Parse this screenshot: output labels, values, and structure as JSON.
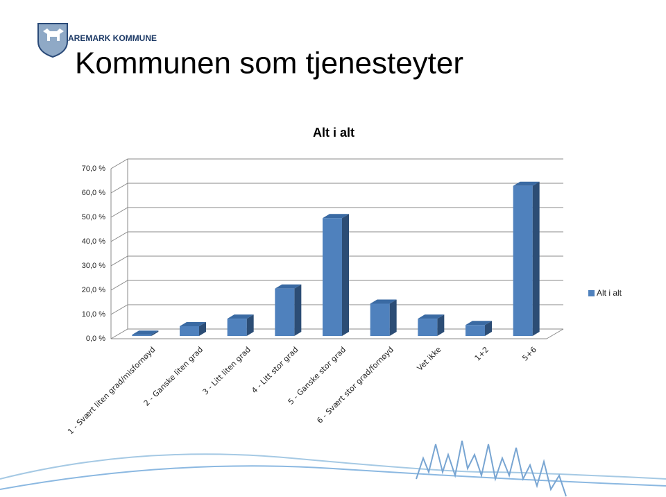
{
  "header": {
    "organization": "AREMARK KOMMUNE",
    "title": "Kommunen som tjenesteyter"
  },
  "chart_data": {
    "type": "bar3d",
    "title": "Alt i alt",
    "categories": [
      "1 - Svært liten grad/misfornøyd",
      "2 - Ganske liten grad",
      "3 - Litt liten grad",
      "4 - Litt stor grad",
      "5 - Ganske stor grad",
      "6 - Svært stor grad/fornøyd",
      "Vet ikke",
      "1+2",
      "5+6"
    ],
    "series": [
      {
        "name": "Alt i alt",
        "color": "#4f81bd",
        "values": [
          0.5,
          4.0,
          7.1,
          19.5,
          48.5,
          13.3,
          7.1,
          4.5,
          61.8
        ]
      }
    ],
    "ylim": [
      0,
      70
    ],
    "yticks": [
      {
        "value": 0,
        "label": "0,0 %"
      },
      {
        "value": 10,
        "label": "10,0 %"
      },
      {
        "value": 20,
        "label": "20,0 %"
      },
      {
        "value": 30,
        "label": "30,0 %"
      },
      {
        "value": 40,
        "label": "40,0 %"
      },
      {
        "value": 50,
        "label": "50,0 %"
      },
      {
        "value": 60,
        "label": "60,0 %"
      },
      {
        "value": 70,
        "label": "70,0 %"
      }
    ],
    "grid": true,
    "legend": "right"
  }
}
